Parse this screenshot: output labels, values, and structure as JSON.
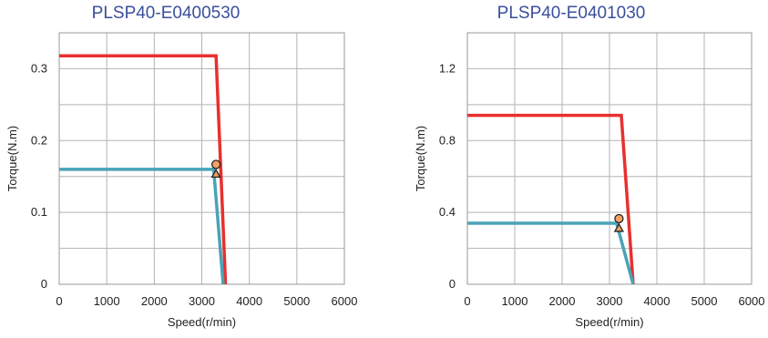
{
  "chart_data": [
    {
      "type": "line",
      "title": "PLSP40-E0400530",
      "xlabel": "Speed(r/min)",
      "ylabel": "Torque(N.m)",
      "xlim": [
        0,
        6000
      ],
      "ylim": [
        0,
        0.35
      ],
      "xticks": [
        0,
        1000,
        2000,
        3000,
        4000,
        5000,
        6000
      ],
      "xtick_labels": [
        "0",
        "1000",
        "2000",
        "3000",
        "4000",
        "5000",
        "6000"
      ],
      "yticks": [
        0,
        0.1,
        0.2,
        0.3
      ],
      "ytick_labels": [
        "0",
        "0.1",
        "0.2",
        "0.3"
      ],
      "grid": true,
      "series": [
        {
          "color": "#e8302e",
          "x": [
            0,
            3300,
            3500
          ],
          "y": [
            0.318,
            0.318,
            0
          ]
        },
        {
          "color": "#4aa3b5",
          "x": [
            0,
            3250,
            3450
          ],
          "y": [
            0.16,
            0.16,
            0
          ]
        }
      ],
      "markers": [
        {
          "shape": "circle",
          "x": 3300,
          "y": 0.163,
          "fill": "#f2a262"
        },
        {
          "shape": "triangle",
          "x": 3300,
          "y": 0.158,
          "fill": "#f2a262"
        }
      ]
    },
    {
      "type": "line",
      "title": "PLSP40-E0401030",
      "xlabel": "Speed(r/min)",
      "ylabel": "Torque(N.m)",
      "xlim": [
        0,
        6000
      ],
      "ylim": [
        0,
        1.4
      ],
      "xticks": [
        0,
        1000,
        2000,
        3000,
        4000,
        5000,
        6000
      ],
      "xtick_labels": [
        "0",
        "1000",
        "2000",
        "3000",
        "4000",
        "5000",
        "6000"
      ],
      "yticks": [
        0,
        0.4,
        0.8,
        1.2
      ],
      "ytick_labels": [
        "0",
        "0.4",
        "0.8",
        "1.2"
      ],
      "grid": true,
      "series": [
        {
          "color": "#e8302e",
          "x": [
            0,
            3250,
            3500
          ],
          "y": [
            0.94,
            0.94,
            0
          ]
        },
        {
          "color": "#4aa3b5",
          "x": [
            0,
            3150,
            3500
          ],
          "y": [
            0.34,
            0.34,
            0
          ]
        }
      ],
      "markers": [
        {
          "shape": "circle",
          "x": 3200,
          "y": 0.35,
          "fill": "#f2a262"
        },
        {
          "shape": "triangle",
          "x": 3200,
          "y": 0.33,
          "fill": "#f2a262"
        }
      ]
    }
  ]
}
